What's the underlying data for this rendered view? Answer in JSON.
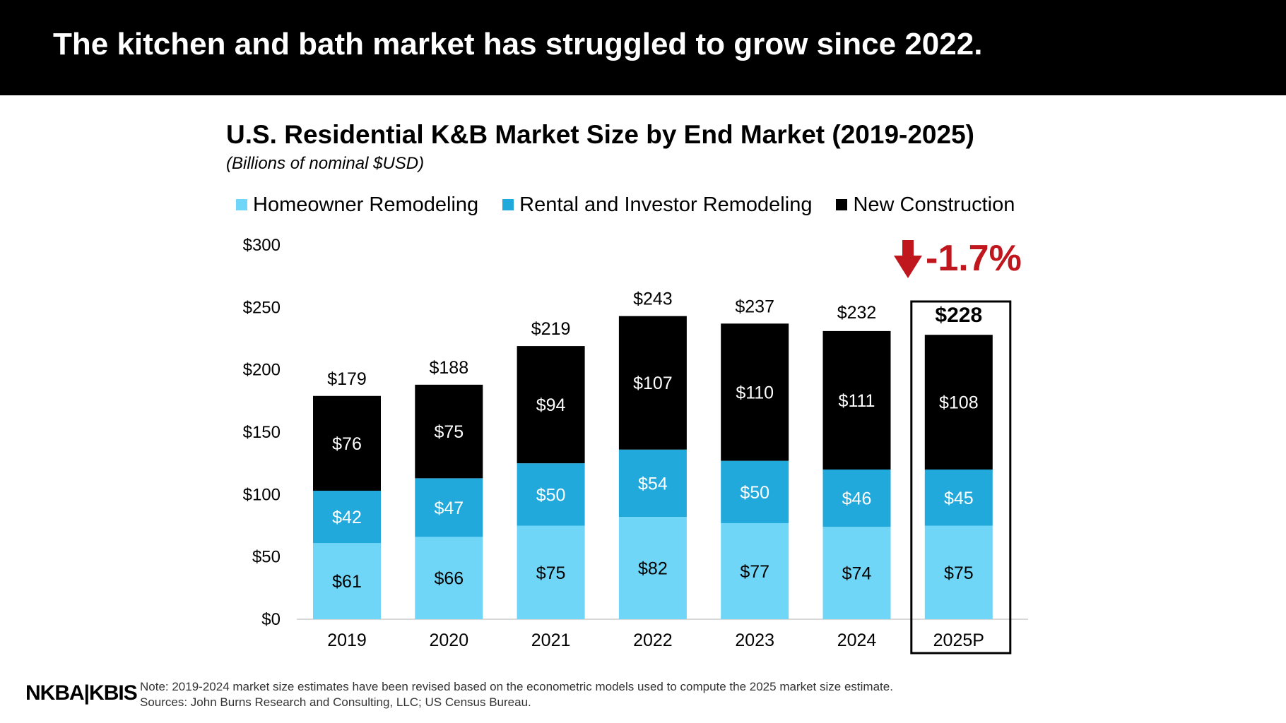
{
  "header": {
    "title": "The kitchen and bath market has struggled to grow since 2022."
  },
  "colors": {
    "homeowner": "#6fd6f8",
    "rental": "#22a9dc",
    "new_construction": "#000000",
    "decline": "#c0161d"
  },
  "chart_data": {
    "type": "bar",
    "stacked": true,
    "title": "U.S. Residential K&B Market Size by End Market (2019-2025)",
    "subtitle": "(Billions of nominal $USD)",
    "categories": [
      "2019",
      "2020",
      "2021",
      "2022",
      "2023",
      "2024",
      "2025P"
    ],
    "series": [
      {
        "name": "Homeowner Remodeling",
        "color": "#6fd6f8",
        "values": [
          61,
          66,
          75,
          82,
          77,
          74,
          75
        ],
        "labels": [
          "$61",
          "$66",
          "$75",
          "$82",
          "$77",
          "$74",
          "$75"
        ]
      },
      {
        "name": "Rental and Investor Remodeling",
        "color": "#22a9dc",
        "values": [
          42,
          47,
          50,
          54,
          50,
          46,
          45
        ],
        "labels": [
          "$42",
          "$47",
          "$50",
          "$54",
          "$50",
          "$46",
          "$45"
        ]
      },
      {
        "name": "New Construction",
        "color": "#000000",
        "values": [
          76,
          75,
          94,
          107,
          110,
          111,
          108
        ],
        "labels": [
          "$76",
          "$75",
          "$94",
          "$107",
          "$110",
          "$111",
          "$108"
        ]
      }
    ],
    "totals": [
      179,
      188,
      219,
      243,
      237,
      232,
      228
    ],
    "total_labels": [
      "$179",
      "$188",
      "$219",
      "$243",
      "$237",
      "$232",
      "$228"
    ],
    "ylim": [
      0,
      300
    ],
    "yticks": [
      0,
      50,
      100,
      150,
      200,
      250,
      300
    ],
    "ytick_labels": [
      "$0",
      "$50",
      "$100",
      "$150",
      "$200",
      "$250",
      "$300"
    ],
    "grid": false,
    "legend_position": "top",
    "highlight": {
      "category": "2025P",
      "change_label": "-1.7%"
    }
  },
  "footer": {
    "logo": "NKBA|KBIS",
    "note": "Note: 2019-2024 market size estimates have been revised based on the econometric models used to compute the 2025 market size estimate.",
    "sources": "Sources: John Burns Research and Consulting, LLC; US Census Bureau."
  }
}
